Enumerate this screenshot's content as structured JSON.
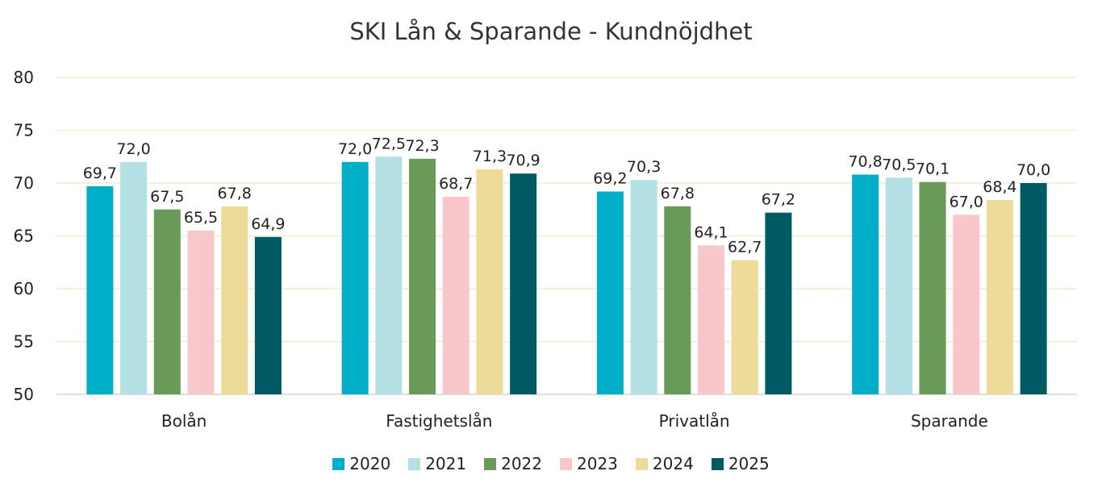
{
  "chart_data": {
    "type": "bar",
    "title": "SKI Lån & Sparande - Kundnöjdhet",
    "categories": [
      "Bolån",
      "Fastighetslån",
      "Privatlån",
      "Sparande"
    ],
    "series": [
      {
        "name": "2020",
        "color": "#00AEC7",
        "values": [
          69.7,
          72.0,
          69.2,
          70.8
        ],
        "labels": [
          "69,7",
          "72,0",
          "69,2",
          "70,8"
        ]
      },
      {
        "name": "2021",
        "color": "#B3E0E3",
        "values": [
          72.0,
          72.5,
          70.3,
          70.5
        ],
        "labels": [
          "72,0",
          "72,5",
          "70,3",
          "70,5"
        ]
      },
      {
        "name": "2022",
        "color": "#6A9A58",
        "values": [
          67.5,
          72.3,
          67.8,
          70.1
        ],
        "labels": [
          "67,5",
          "72,3",
          "67,8",
          "70,1"
        ]
      },
      {
        "name": "2023",
        "color": "#F8C7CC",
        "values": [
          65.5,
          68.7,
          64.1,
          67.0
        ],
        "labels": [
          "65,5",
          "68,7",
          "64,1",
          "67,0"
        ]
      },
      {
        "name": "2024",
        "color": "#EDDB9A",
        "values": [
          67.8,
          71.3,
          62.7,
          68.4
        ],
        "labels": [
          "67,8",
          "71,3",
          "62,7",
          "68,4"
        ]
      },
      {
        "name": "2025",
        "color": "#005A64",
        "values": [
          64.9,
          70.9,
          67.2,
          70.0
        ],
        "labels": [
          "64,9",
          "70,9",
          "67,2",
          "70,0"
        ]
      }
    ],
    "ylim": [
      50,
      80
    ],
    "yticks": [
      "50",
      "55",
      "60",
      "65",
      "70",
      "75",
      "80"
    ],
    "grid": true,
    "legend_position": "bottom"
  }
}
